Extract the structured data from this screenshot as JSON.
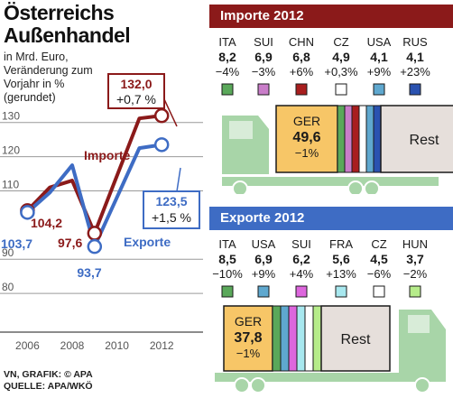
{
  "title_line1": "Österreichs",
  "title_line2": "Außenhandel",
  "subtitle": "in Mrd. Euro, Veränderung zum Vorjahr in % (gerundet)",
  "source_line1": "VN, GRAFIK: © APA",
  "source_line2": "QUELLE: APA/WKÖ",
  "colors": {
    "importe": "#8b1a1a",
    "exporte": "#3e6cc4",
    "ger": "#f7c667",
    "rest": "#e6dfdb",
    "truck": "#a8d5a8",
    "importe_header": "#8b1a1a",
    "exporte_header": "#3e6cc4"
  },
  "chart_data": [
    {
      "type": "line",
      "ylim": [
        75,
        136
      ],
      "xlim": [
        2005.5,
        2013
      ],
      "x": [
        2006,
        2007,
        2008,
        2009,
        2011,
        2012
      ],
      "yticks": [
        80,
        90,
        110,
        120,
        130
      ],
      "xticks": [
        "2006",
        "2008",
        "2010",
        "2012"
      ],
      "series": [
        {
          "name": "Importe",
          "color": "#8b1a1a",
          "values": [
            104.2,
            111,
            113,
            97.6,
            131.2,
            132.0
          ]
        },
        {
          "name": "Exporte",
          "color": "#3e6cc4",
          "values": [
            103.7,
            109.5,
            117.5,
            93.7,
            122.5,
            123.5
          ]
        }
      ],
      "labels": {
        "imp_2006": "104,2",
        "exp_2006": "103,7",
        "imp_2009": "97,6",
        "exp_2009": "93,7",
        "imp_2012_value": "132,0",
        "imp_2012_change": "+0,7 %",
        "exp_2012_value": "123,5",
        "exp_2012_change": "+1,5 %"
      }
    },
    {
      "type": "table",
      "title": "Importe 2012",
      "countries": [
        {
          "code": "ITA",
          "value": "8,2",
          "change": "−4%",
          "color": "#5aa85a"
        },
        {
          "code": "SUI",
          "value": "6,9",
          "change": "−3%",
          "color": "#c97dc9"
        },
        {
          "code": "CHN",
          "value": "6,8",
          "change": "+6%",
          "color": "#a81e1e"
        },
        {
          "code": "CZ",
          "value": "4,9",
          "change": "+0,3%",
          "color": "#ffffff"
        },
        {
          "code": "USA",
          "value": "4,1",
          "change": "+9%",
          "color": "#5fa8cf"
        },
        {
          "code": "RUS",
          "value": "4,1",
          "change": "+23%",
          "color": "#2a52b0"
        }
      ],
      "ger": {
        "code": "GER",
        "value": "49,6",
        "change": "−1%"
      },
      "rest": "Rest"
    },
    {
      "type": "table",
      "title": "Exporte 2012",
      "countries": [
        {
          "code": "ITA",
          "value": "8,5",
          "change": "−10%",
          "color": "#5aa85a"
        },
        {
          "code": "USA",
          "value": "6,9",
          "change": "+9%",
          "color": "#5fa8cf"
        },
        {
          "code": "SUI",
          "value": "6,2",
          "change": "+4%",
          "color": "#dd66dd"
        },
        {
          "code": "FRA",
          "value": "5,6",
          "change": "+13%",
          "color": "#a8e8ef"
        },
        {
          "code": "CZ",
          "value": "4,5",
          "change": "−6%",
          "color": "#ffffff"
        },
        {
          "code": "HUN",
          "value": "3,7",
          "change": "−2%",
          "color": "#b6ec8a"
        }
      ],
      "ger": {
        "code": "GER",
        "value": "37,8",
        "change": "−1%"
      },
      "rest": "Rest"
    }
  ]
}
